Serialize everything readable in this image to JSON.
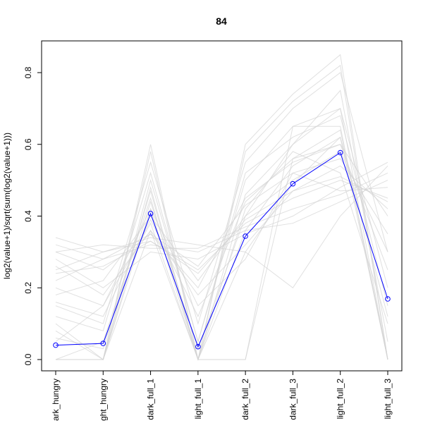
{
  "chart_data": {
    "type": "line",
    "title": "84",
    "xlabel": "",
    "ylabel": "log2(value+1)/sqrt(sum(log2(value+1)))",
    "categories": [
      "dark_hungry",
      "light_hungry",
      "dark_full_1",
      "light_full_1",
      "dark_full_2",
      "dark_full_3",
      "light_full_2",
      "light_full_3"
    ],
    "category_tick_labels": [
      "ark_hungry",
      "ght_hungry",
      "dark_full_1",
      "light_full_1",
      "dark_full_2",
      "dark_full_3",
      "light_full_2",
      "light_full_3"
    ],
    "ylim": [
      0,
      0.85
    ],
    "yticks": [
      0.0,
      0.2,
      0.4,
      0.6,
      0.8
    ],
    "ytick_labels": [
      "0.0",
      "0.2",
      "0.4",
      "0.6",
      "0.8"
    ],
    "grid": false,
    "legend": "none",
    "highlight_series": {
      "color": "#0000ff",
      "values": [
        0.04,
        0.045,
        0.407,
        0.036,
        0.344,
        0.49,
        0.577,
        0.169
      ]
    },
    "background_series_color": "#d3d3d3",
    "background_series": [
      [
        0.0,
        0.0,
        0.42,
        0.0,
        0.3,
        0.49,
        0.62,
        0.0
      ],
      [
        0.3,
        0.25,
        0.35,
        0.2,
        0.45,
        0.55,
        0.6,
        0.4
      ],
      [
        0.1,
        0.0,
        0.5,
        0.05,
        0.5,
        0.65,
        0.7,
        0.2
      ],
      [
        0.25,
        0.3,
        0.33,
        0.25,
        0.38,
        0.45,
        0.5,
        0.45
      ],
      [
        0.0,
        0.05,
        0.45,
        0.0,
        0.0,
        0.65,
        0.65,
        0.0
      ],
      [
        0.15,
        0.1,
        0.55,
        0.1,
        0.55,
        0.7,
        0.8,
        0.3
      ],
      [
        0.28,
        0.2,
        0.3,
        0.28,
        0.35,
        0.4,
        0.48,
        0.55
      ],
      [
        0.05,
        0.15,
        0.38,
        0.0,
        0.42,
        0.58,
        0.52,
        0.1
      ],
      [
        0.0,
        0.0,
        0.6,
        0.0,
        0.6,
        0.74,
        0.85,
        0.0
      ],
      [
        0.32,
        0.28,
        0.32,
        0.3,
        0.36,
        0.38,
        0.44,
        0.5
      ],
      [
        0.2,
        0.15,
        0.42,
        0.15,
        0.28,
        0.52,
        0.56,
        0.35
      ],
      [
        0.08,
        0.0,
        0.48,
        0.0,
        0.46,
        0.6,
        0.75,
        0.05
      ],
      [
        0.34,
        0.3,
        0.34,
        0.32,
        0.3,
        0.2,
        0.4,
        0.54
      ],
      [
        0.0,
        0.0,
        0.36,
        0.0,
        0.0,
        0.56,
        0.64,
        0.0
      ],
      [
        0.18,
        0.22,
        0.4,
        0.22,
        0.4,
        0.5,
        0.58,
        0.3
      ],
      [
        0.12,
        0.08,
        0.52,
        0.05,
        0.52,
        0.62,
        0.68,
        0.15
      ],
      [
        0.26,
        0.18,
        0.36,
        0.18,
        0.32,
        0.47,
        0.54,
        0.42
      ],
      [
        0.0,
        0.0,
        0.44,
        0.03,
        0.4,
        0.6,
        0.7,
        0.0
      ],
      [
        0.22,
        0.28,
        0.35,
        0.26,
        0.43,
        0.52,
        0.47,
        0.48
      ],
      [
        0.06,
        0.03,
        0.47,
        0.0,
        0.36,
        0.54,
        0.62,
        0.12
      ],
      [
        0.3,
        0.32,
        0.31,
        0.31,
        0.37,
        0.42,
        0.46,
        0.52
      ],
      [
        0.0,
        0.0,
        0.58,
        0.0,
        0.58,
        0.72,
        0.82,
        0.0
      ],
      [
        0.16,
        0.12,
        0.39,
        0.12,
        0.44,
        0.56,
        0.6,
        0.25
      ],
      [
        0.24,
        0.26,
        0.33,
        0.24,
        0.39,
        0.47,
        0.51,
        0.44
      ]
    ]
  }
}
